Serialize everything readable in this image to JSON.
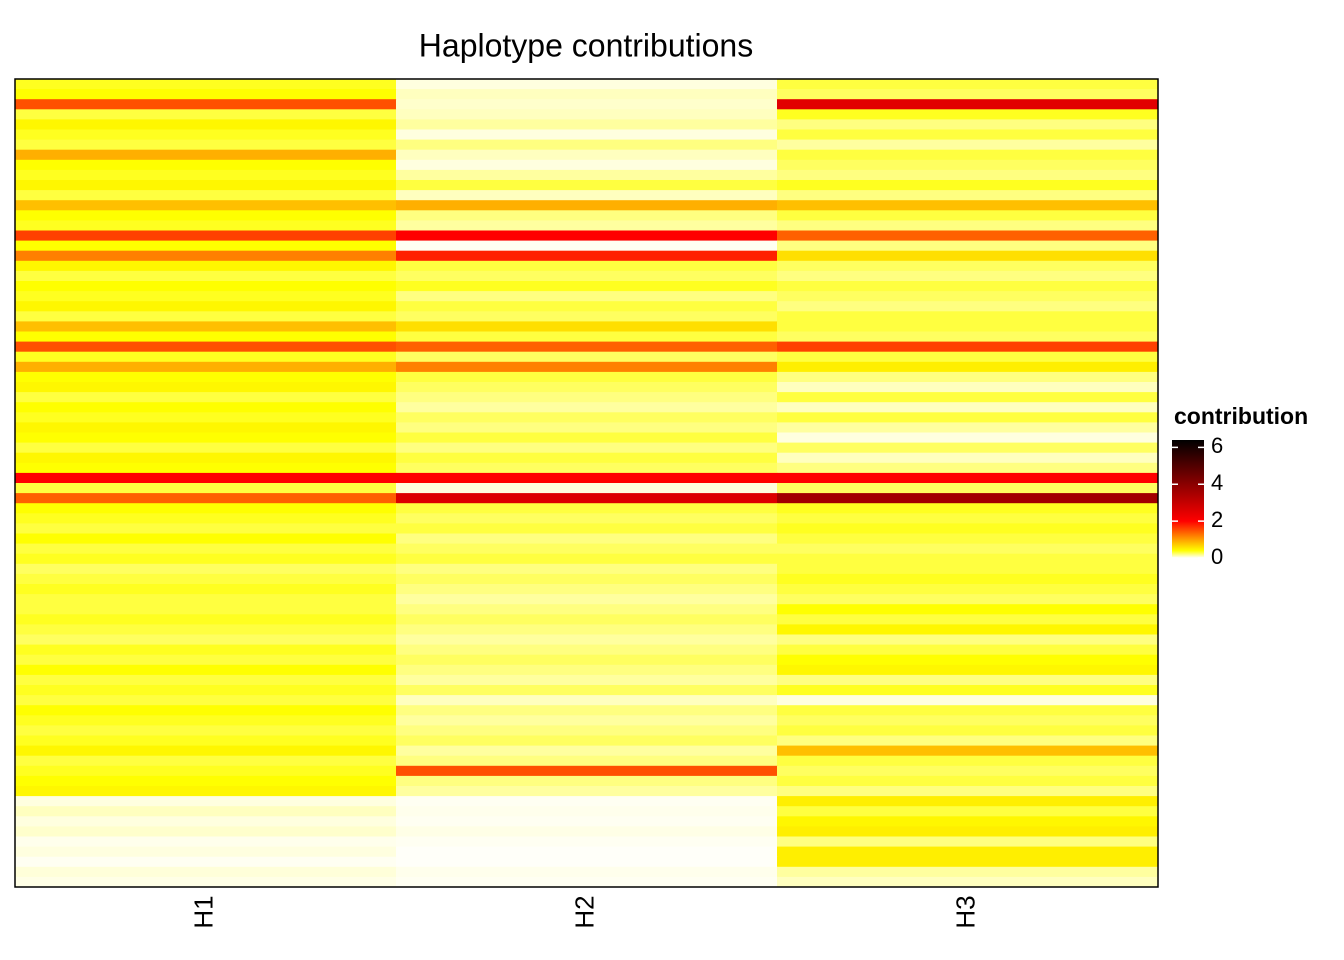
{
  "chart_data": {
    "type": "heatmap",
    "title": "Haplotype contributions",
    "categories": [
      "H1",
      "H2",
      "H3"
    ],
    "legend_title": "contribution",
    "clim": [
      0,
      6.4
    ],
    "legend_ticks": [
      0,
      2,
      4,
      6
    ],
    "color_stops": [
      0,
      0.4,
      2,
      6.4
    ],
    "colors": [
      "#ffffff",
      "#ffff00",
      "#ff0000",
      "#000000"
    ],
    "values": [
      [
        0.35,
        0.05,
        0.3
      ],
      [
        0.4,
        0.1,
        0.25
      ],
      [
        1.5,
        0.08,
        2.5
      ],
      [
        0.3,
        0.1,
        0.35
      ],
      [
        0.45,
        0.15,
        0.2
      ],
      [
        0.35,
        0.05,
        0.3
      ],
      [
        0.3,
        0.2,
        0.15
      ],
      [
        0.9,
        0.1,
        0.3
      ],
      [
        0.4,
        0.05,
        0.25
      ],
      [
        0.35,
        0.15,
        0.2
      ],
      [
        0.45,
        0.3,
        0.35
      ],
      [
        0.3,
        0.1,
        0.2
      ],
      [
        0.8,
        0.9,
        0.8
      ],
      [
        0.4,
        0.2,
        0.3
      ],
      [
        0.35,
        0.15,
        0.2
      ],
      [
        1.6,
        2.0,
        1.4
      ],
      [
        0.4,
        0.02,
        0.2
      ],
      [
        1.2,
        1.8,
        0.6
      ],
      [
        0.45,
        0.3,
        0.25
      ],
      [
        0.3,
        0.25,
        0.2
      ],
      [
        0.4,
        0.35,
        0.3
      ],
      [
        0.35,
        0.2,
        0.25
      ],
      [
        0.45,
        0.3,
        0.2
      ],
      [
        0.3,
        0.25,
        0.3
      ],
      [
        0.8,
        0.6,
        0.3
      ],
      [
        0.4,
        0.3,
        0.25
      ],
      [
        1.5,
        1.4,
        1.6
      ],
      [
        0.35,
        0.25,
        0.3
      ],
      [
        0.9,
        1.2,
        0.5
      ],
      [
        0.4,
        0.3,
        0.2
      ],
      [
        0.45,
        0.25,
        0.1
      ],
      [
        0.3,
        0.2,
        0.3
      ],
      [
        0.4,
        0.15,
        0.1
      ],
      [
        0.35,
        0.25,
        0.3
      ],
      [
        0.45,
        0.2,
        0.15
      ],
      [
        0.4,
        0.3,
        0.05
      ],
      [
        0.3,
        0.2,
        0.25
      ],
      [
        0.45,
        0.3,
        0.1
      ],
      [
        0.4,
        0.25,
        0.2
      ],
      [
        2.0,
        2.0,
        2.0
      ],
      [
        0.3,
        0.05,
        0.25
      ],
      [
        1.4,
        2.6,
        3.6
      ],
      [
        0.4,
        0.3,
        0.35
      ],
      [
        0.35,
        0.25,
        0.3
      ],
      [
        0.3,
        0.3,
        0.35
      ],
      [
        0.4,
        0.2,
        0.3
      ],
      [
        0.3,
        0.25,
        0.25
      ],
      [
        0.35,
        0.3,
        0.3
      ],
      [
        0.25,
        0.2,
        0.3
      ],
      [
        0.3,
        0.25,
        0.35
      ],
      [
        0.35,
        0.2,
        0.3
      ],
      [
        0.3,
        0.15,
        0.25
      ],
      [
        0.3,
        0.2,
        0.4
      ],
      [
        0.35,
        0.25,
        0.3
      ],
      [
        0.3,
        0.2,
        0.45
      ],
      [
        0.25,
        0.15,
        0.2
      ],
      [
        0.35,
        0.2,
        0.3
      ],
      [
        0.3,
        0.25,
        0.4
      ],
      [
        0.4,
        0.2,
        0.45
      ],
      [
        0.3,
        0.15,
        0.2
      ],
      [
        0.35,
        0.25,
        0.35
      ],
      [
        0.3,
        0.1,
        0.05
      ],
      [
        0.4,
        0.2,
        0.3
      ],
      [
        0.35,
        0.15,
        0.25
      ],
      [
        0.3,
        0.2,
        0.3
      ],
      [
        0.35,
        0.25,
        0.2
      ],
      [
        0.45,
        0.15,
        0.8
      ],
      [
        0.3,
        0.2,
        0.3
      ],
      [
        0.35,
        1.5,
        0.25
      ],
      [
        0.4,
        0.2,
        0.3
      ],
      [
        0.45,
        0.15,
        0.2
      ],
      [
        0.05,
        0.02,
        0.5
      ],
      [
        0.1,
        0.03,
        0.3
      ],
      [
        0.05,
        0.02,
        0.45
      ],
      [
        0.08,
        0.04,
        0.5
      ],
      [
        0.03,
        0.02,
        0.2
      ],
      [
        0.05,
        0.01,
        0.5
      ],
      [
        0.02,
        0.01,
        0.5
      ],
      [
        0.06,
        0.03,
        0.15
      ],
      [
        0.04,
        0.02,
        0.1
      ]
    ]
  }
}
